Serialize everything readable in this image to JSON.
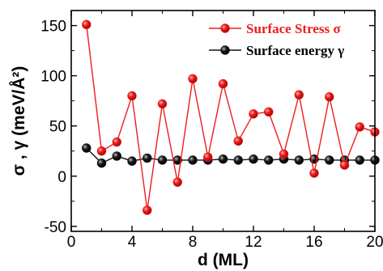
{
  "chart_data": {
    "type": "line",
    "xlabel": "d (ML)",
    "ylabel": "σ , γ (meV/Å²)",
    "xlim": [
      0,
      20
    ],
    "ylim": [
      -55,
      165
    ],
    "xticks": [
      0,
      4,
      8,
      12,
      16,
      20
    ],
    "yticks": [
      -50,
      0,
      50,
      100,
      150
    ],
    "grid": false,
    "legend_position": "top-right",
    "x": [
      1,
      2,
      3,
      4,
      5,
      6,
      7,
      8,
      9,
      10,
      11,
      12,
      13,
      14,
      15,
      16,
      17,
      18,
      19,
      20
    ],
    "series": [
      {
        "name": "Surface Stress σ",
        "color": "#ee1c1c",
        "values": [
          151,
          25,
          34,
          80,
          -34,
          72,
          -6,
          97,
          19,
          92,
          35,
          62,
          64,
          22,
          81,
          3,
          79,
          11,
          49,
          44
        ]
      },
      {
        "name": "Surface energy γ",
        "color": "#111111",
        "values": [
          28,
          13,
          20,
          15,
          18,
          16,
          16,
          16,
          16,
          17,
          16,
          17,
          16,
          17,
          16,
          17,
          16,
          16,
          16,
          16
        ]
      }
    ]
  }
}
